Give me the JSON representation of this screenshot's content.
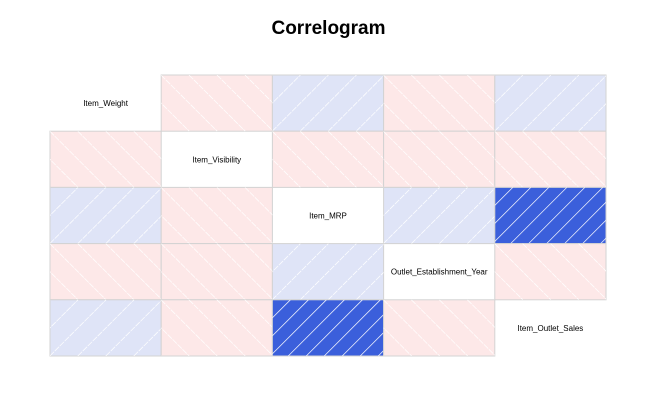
{
  "chart_data": {
    "type": "heatmap",
    "title": "Correlogram",
    "variables": [
      "Item_Weight",
      "Item_Visibility",
      "Item_MRP",
      "Outlet_Establishment_Year",
      "Item_Outlet_Sales"
    ],
    "matrix": [
      [
        1,
        -0.01,
        0.03,
        -0.01,
        0.01
      ],
      [
        -0.01,
        1,
        -0.01,
        -0.07,
        -0.13
      ],
      [
        0.03,
        -0.01,
        1,
        0.01,
        0.57
      ],
      [
        -0.01,
        -0.07,
        0.01,
        1,
        -0.05
      ],
      [
        0.01,
        -0.13,
        0.57,
        -0.05,
        1
      ]
    ],
    "panel": "shade",
    "colors": {
      "positive_strong": "#3b5fdb",
      "positive_weak": "#dfe4f7",
      "negative_weak": "#fde8e8",
      "negative_strong": "#e04848",
      "border": "#d3d3d3",
      "hatch": "#ffffff"
    }
  }
}
